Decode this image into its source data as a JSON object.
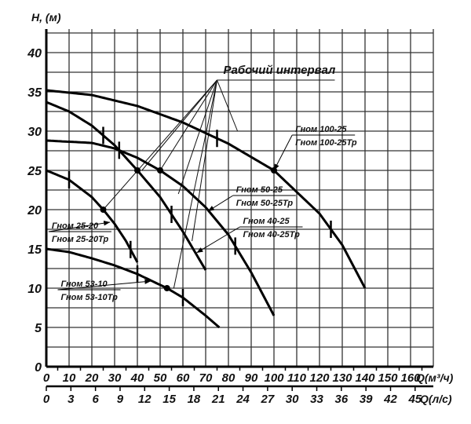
{
  "chart_data": {
    "type": "line",
    "ylabel": "H, (м)",
    "xlabel": "Q(м³/ч)",
    "xlabel2": "Q(л/с)",
    "xlim": [
      0,
      170
    ],
    "ylim": [
      0,
      43
    ],
    "grid": true,
    "xticks": [
      0,
      10,
      20,
      30,
      40,
      50,
      60,
      70,
      80,
      90,
      100,
      110,
      120,
      130,
      140,
      150,
      160
    ],
    "xticks2": [
      0,
      3,
      6,
      9,
      12,
      15,
      18,
      21,
      24,
      27,
      30,
      33,
      36,
      39,
      42,
      45
    ],
    "yticks": [
      0,
      5,
      10,
      15,
      20,
      25,
      30,
      35,
      40
    ],
    "annotation": "Рабочий интервал",
    "annotation_point": [
      75,
      36.5
    ],
    "annotation_targets": [
      [
        25,
        20
      ],
      [
        42,
        25
      ],
      [
        50,
        25
      ],
      [
        58,
        22
      ],
      [
        64,
        16
      ],
      [
        56,
        10
      ],
      [
        84,
        30
      ]
    ],
    "series": [
      {
        "name": "Гном 100-25",
        "name2": "Гном 100-25Тр",
        "x": [
          0,
          20,
          40,
          60,
          80,
          100,
          120,
          130,
          140
        ],
        "y": [
          35.2,
          34.6,
          33.2,
          31.1,
          28.4,
          25,
          19.5,
          15.5,
          10
        ],
        "markers": [
          75,
          125
        ],
        "dot": [
          100,
          25
        ],
        "label_at": [
          108,
          29.5
        ],
        "arrow_to": [
          100,
          25
        ]
      },
      {
        "name": "Гном 50-25",
        "name2": "Гном 50-25Тр",
        "x": [
          0,
          20,
          30,
          40,
          50,
          60,
          70,
          80,
          90,
          100
        ],
        "y": [
          28.8,
          28.5,
          27.8,
          26.6,
          25,
          23,
          20.3,
          16.8,
          12,
          6.5
        ],
        "markers": [
          32,
          83
        ],
        "dot": [
          50,
          25
        ],
        "label_at": [
          82,
          21.8
        ],
        "arrow_to": [
          71,
          19.8
        ]
      },
      {
        "name": "Гном 40-25",
        "name2": "Гном 40-25Тр",
        "x": [
          0,
          10,
          20,
          30,
          40,
          50,
          60,
          70
        ],
        "y": [
          33.7,
          32.5,
          30.7,
          28.2,
          25,
          21.6,
          17.2,
          12.3
        ],
        "markers": [
          25,
          55
        ],
        "dot": [
          40,
          25
        ],
        "label_at": [
          85,
          17.8
        ],
        "arrow_to": [
          66,
          14.5
        ]
      },
      {
        "name": "Гном 25-20",
        "name2": "Гном 25-20Тр",
        "x": [
          0,
          10,
          20,
          25,
          30,
          35,
          40
        ],
        "y": [
          25,
          23.8,
          21.6,
          20,
          18.2,
          16,
          13.3
        ],
        "markers": [
          10,
          37
        ],
        "dot": [
          25,
          20
        ],
        "label_at": [
          1,
          17.2
        ],
        "arrow_to": [
          28,
          18.4
        ]
      },
      {
        "name": "Гном 53-10",
        "name2": "Гном 53-10Тр",
        "x": [
          0,
          10,
          20,
          30,
          40,
          53,
          60,
          70,
          76
        ],
        "y": [
          15,
          14.6,
          13.8,
          12.9,
          11.8,
          10,
          8.8,
          6.5,
          5
        ],
        "markers": [
          40,
          60
        ],
        "dot": [
          53,
          10
        ],
        "label_at": [
          5,
          9.8
        ],
        "arrow_to": [
          46,
          10.9
        ]
      }
    ]
  }
}
